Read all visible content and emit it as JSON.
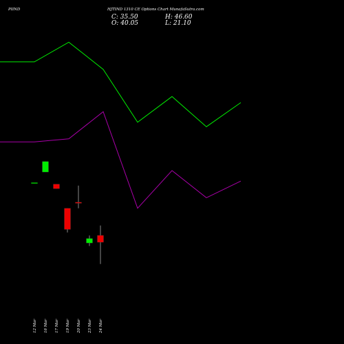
{
  "header": {
    "symbol": "PIIND",
    "title": "HJTIND 1310  CE Options  Chart MunafaSutra.com"
  },
  "ohlc": {
    "close": "C: 35.50",
    "high": "H: 46.60",
    "open": "O: 40.05",
    "low": "L: 21.10"
  },
  "chart_data": {
    "type": "candlestick",
    "dates": [
      "12 Mar",
      "16 Mar",
      "17 Mar",
      "19 Mar",
      "20 Mar",
      "23 Mar",
      "24 Mar"
    ],
    "candles": [
      {
        "date": "12 Mar",
        "open": 75.0,
        "high": 75.0,
        "low": 75.0,
        "close": 75.0
      },
      {
        "date": "16 Mar",
        "open": 82.0,
        "high": 89.0,
        "low": 82.0,
        "close": 89.0
      },
      {
        "date": "17 Mar",
        "open": 74.0,
        "high": 74.0,
        "low": 71.0,
        "close": 71.0
      },
      {
        "date": "19 Mar",
        "open": 58.0,
        "high": 58.0,
        "low": 42.0,
        "close": 44.0
      },
      {
        "date": "20 Mar",
        "open": 62.0,
        "high": 73.0,
        "low": 58.0,
        "close": 61.5
      },
      {
        "date": "23 Mar",
        "open": 35.0,
        "high": 40.0,
        "low": 33.0,
        "close": 38.0
      },
      {
        "date": "24 Mar",
        "open": 40.05,
        "high": 46.6,
        "low": 21.1,
        "close": 35.5
      }
    ],
    "ylim": [
      0,
      180
    ],
    "colors": {
      "up": "#00ee00",
      "down": "#ee0000",
      "doji": "#00aa00"
    },
    "overlays": [
      {
        "color": "#00ee00",
        "values": [
          155,
          155,
          168,
          150,
          115,
          132,
          112,
          128
        ]
      },
      {
        "color": "#aa00aa",
        "values": [
          102,
          102,
          104,
          122,
          58,
          83,
          65,
          76
        ]
      }
    ]
  }
}
